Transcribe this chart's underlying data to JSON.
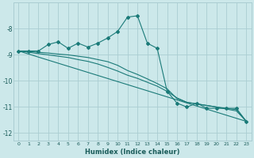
{
  "xlabel": "Humidex (Indice chaleur)",
  "ylabel": "",
  "bg_color": "#cce8ea",
  "grid_color": "#aacdd2",
  "line_color": "#1a7a78",
  "xlim": [
    -0.5,
    23.5
  ],
  "ylim": [
    -12.3,
    -7.0
  ],
  "yticks": [
    -12,
    -11,
    -10,
    -9,
    -8
  ],
  "xticks": [
    0,
    1,
    2,
    3,
    4,
    5,
    6,
    7,
    8,
    9,
    10,
    11,
    12,
    13,
    14,
    15,
    16,
    17,
    18,
    19,
    20,
    21,
    22,
    23
  ],
  "series": [
    [
      0,
      -8.85
    ],
    [
      1,
      -8.85
    ],
    [
      2,
      -8.85
    ],
    [
      3,
      -8.6
    ],
    [
      4,
      -8.5
    ],
    [
      5,
      -8.75
    ],
    [
      6,
      -8.55
    ],
    [
      7,
      -8.7
    ],
    [
      8,
      -8.55
    ],
    [
      9,
      -8.35
    ],
    [
      10,
      -8.1
    ],
    [
      11,
      -7.55
    ],
    [
      12,
      -7.5
    ],
    [
      13,
      -8.55
    ],
    [
      14,
      -8.75
    ],
    [
      15,
      -10.4
    ],
    [
      16,
      -10.85
    ],
    [
      17,
      -11.0
    ],
    [
      18,
      -10.85
    ],
    [
      19,
      -11.05
    ],
    [
      20,
      -11.05
    ],
    [
      21,
      -11.05
    ],
    [
      22,
      -11.05
    ],
    [
      23,
      -11.55
    ]
  ],
  "line2": [
    [
      0,
      -8.85
    ],
    [
      23,
      -11.55
    ]
  ],
  "line3": [
    [
      0,
      -8.85
    ],
    [
      1,
      -8.87
    ],
    [
      2,
      -8.9
    ],
    [
      3,
      -8.93
    ],
    [
      4,
      -8.97
    ],
    [
      5,
      -9.0
    ],
    [
      6,
      -9.05
    ],
    [
      7,
      -9.1
    ],
    [
      8,
      -9.18
    ],
    [
      9,
      -9.26
    ],
    [
      10,
      -9.4
    ],
    [
      11,
      -9.6
    ],
    [
      12,
      -9.75
    ],
    [
      13,
      -9.92
    ],
    [
      14,
      -10.1
    ],
    [
      15,
      -10.3
    ],
    [
      16,
      -10.68
    ],
    [
      17,
      -10.82
    ],
    [
      18,
      -10.88
    ],
    [
      19,
      -10.94
    ],
    [
      20,
      -11.0
    ],
    [
      21,
      -11.05
    ],
    [
      22,
      -11.1
    ],
    [
      23,
      -11.55
    ]
  ],
  "line4": [
    [
      0,
      -8.85
    ],
    [
      1,
      -8.9
    ],
    [
      2,
      -8.95
    ],
    [
      3,
      -9.0
    ],
    [
      4,
      -9.05
    ],
    [
      5,
      -9.1
    ],
    [
      6,
      -9.18
    ],
    [
      7,
      -9.25
    ],
    [
      8,
      -9.35
    ],
    [
      9,
      -9.48
    ],
    [
      10,
      -9.62
    ],
    [
      11,
      -9.78
    ],
    [
      12,
      -9.9
    ],
    [
      13,
      -10.05
    ],
    [
      14,
      -10.2
    ],
    [
      15,
      -10.4
    ],
    [
      16,
      -10.65
    ],
    [
      17,
      -10.82
    ],
    [
      18,
      -10.88
    ],
    [
      19,
      -10.94
    ],
    [
      20,
      -11.0
    ],
    [
      21,
      -11.08
    ],
    [
      22,
      -11.15
    ],
    [
      23,
      -11.55
    ]
  ]
}
